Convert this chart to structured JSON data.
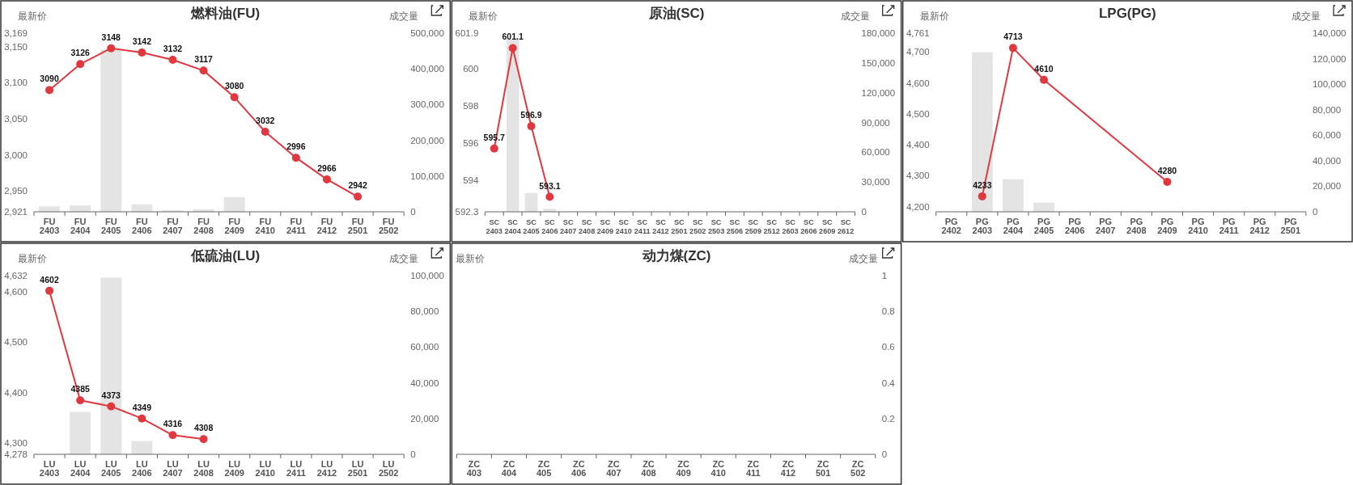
{
  "chart_data": [
    {
      "type": "bar",
      "title": "燃料油(FU)",
      "ylabel": "最新价",
      "y2label": "成交量",
      "categories": [
        "FU 2403",
        "FU 2404",
        "FU 2405",
        "FU 2406",
        "FU 2407",
        "FU 2408",
        "FU 2409",
        "FU 2410",
        "FU 2411",
        "FU 2412",
        "FU 2501",
        "FU 2502"
      ],
      "ylim": [
        2921,
        3169
      ],
      "yticks": [
        {
          "value": 2921,
          "label": "2,921"
        },
        {
          "value": 2950,
          "label": "2,950"
        },
        {
          "value": 3000,
          "label": "3,000"
        },
        {
          "value": 3050,
          "label": "3,050"
        },
        {
          "value": 3100,
          "label": "3,100"
        },
        {
          "value": 3150,
          "label": "3,150"
        },
        {
          "value": 3169,
          "label": "3,169"
        }
      ],
      "y2lim": [
        0,
        500000
      ],
      "y2ticks": [
        0,
        {
          "value": 100000,
          "label": "100,000"
        },
        {
          "value": 200000,
          "label": "200,000"
        },
        {
          "value": 300000,
          "label": "300,000"
        },
        {
          "value": 400000,
          "label": "400,000"
        },
        {
          "value": 500000,
          "label": "500,000"
        }
      ],
      "marker": "circle",
      "grid": false,
      "series": [
        {
          "axis": "y2",
          "color": "#e4e4e4",
          "values": [
            15000,
            18000,
            454000,
            21000,
            4000,
            7000,
            41000,
            null,
            null,
            null,
            null,
            null
          ]
        },
        {
          "type": "line",
          "color": "#e0383e",
          "values": [
            3090,
            3126,
            3148,
            3142,
            3132,
            3117,
            3080,
            3032,
            2996,
            2966,
            2942,
            null
          ],
          "value_labels": [
            "3090",
            "3126",
            "3148",
            "3142",
            "3132",
            "3117",
            "3080",
            "3032",
            "2996",
            "2966",
            "2942",
            null
          ]
        }
      ]
    },
    {
      "type": "bar",
      "title": "原油(SC)",
      "ylabel": "最新价",
      "y2label": "成交量",
      "categories": [
        "SC 2403",
        "SC 2404",
        "SC 2405",
        "SC 2406",
        "SC 2407",
        "SC 2408",
        "SC 2409",
        "SC 2410",
        "SC 2411",
        "SC 2412",
        "SC 2501",
        "SC 2502",
        "SC 2503",
        "SC 2506",
        "SC 2509",
        "SC 2512",
        "SC 2603",
        "SC 2606",
        "SC 2609",
        "SC 2612"
      ],
      "ylim": [
        592.3,
        601.9
      ],
      "yticks": [
        592.3,
        594,
        596,
        598,
        600,
        601.9
      ],
      "y2lim": [
        0,
        180000
      ],
      "y2ticks": [
        0,
        {
          "value": 30000,
          "label": "30,000"
        },
        {
          "value": 60000,
          "label": "60,000"
        },
        {
          "value": 90000,
          "label": "90,000"
        },
        {
          "value": 120000,
          "label": "120,000"
        },
        {
          "value": 150000,
          "label": "150,000"
        },
        {
          "value": 180000,
          "label": "180,000"
        }
      ],
      "marker": "circle",
      "grid": false,
      "series": [
        {
          "axis": "y2",
          "color": "#e4e4e4",
          "values": [
            null,
            174000,
            19000,
            3000,
            null,
            null,
            null,
            null,
            null,
            null,
            null,
            null,
            null,
            null,
            null,
            null,
            null,
            null,
            null,
            null
          ]
        },
        {
          "type": "line",
          "color": "#e0383e",
          "values": [
            595.7,
            601.1,
            596.9,
            593.1,
            null,
            null,
            null,
            null,
            null,
            null,
            null,
            null,
            null,
            null,
            null,
            null,
            null,
            null,
            null,
            null
          ],
          "value_labels": [
            "595.7",
            "601.1",
            "596.9",
            "593.1",
            null,
            null,
            null,
            null,
            null,
            null,
            null,
            null,
            null,
            null,
            null,
            null,
            null,
            null,
            null,
            null
          ]
        }
      ]
    },
    {
      "type": "bar",
      "title": "LPG(PG)",
      "ylabel": "最新价",
      "y2label": "成交量",
      "categories": [
        "PG 2402",
        "PG 2403",
        "PG 2404",
        "PG 2405",
        "PG 2406",
        "PG 2407",
        "PG 2408",
        "PG 2409",
        "PG 2410",
        "PG 2411",
        "PG 2412",
        "PG 2501"
      ],
      "ylim": [
        4183,
        4761
      ],
      "yticks": [
        {
          "value": 4200,
          "label": "4,200"
        },
        {
          "value": 4300,
          "label": "4,300"
        },
        {
          "value": 4400,
          "label": "4,400"
        },
        {
          "value": 4500,
          "label": "4,500"
        },
        {
          "value": 4600,
          "label": "4,600"
        },
        {
          "value": 4700,
          "label": "4,700"
        },
        {
          "value": 4761,
          "label": "4,761"
        }
      ],
      "y2lim": [
        0,
        140000
      ],
      "y2ticks": [
        0,
        {
          "value": 20000,
          "label": "20,000"
        },
        {
          "value": 40000,
          "label": "40,000"
        },
        {
          "value": 60000,
          "label": "60,000"
        },
        {
          "value": 80000,
          "label": "80,000"
        },
        {
          "value": 100000,
          "label": "100,000"
        },
        {
          "value": 120000,
          "label": "120,000"
        },
        {
          "value": 140000,
          "label": "140,000"
        }
      ],
      "marker": "circle",
      "grid": false,
      "series": [
        {
          "axis": "y2",
          "color": "#e4e4e4",
          "values": [
            null,
            125000,
            25500,
            7200,
            null,
            null,
            null,
            null,
            null,
            null,
            null,
            null
          ]
        },
        {
          "type": "line",
          "color": "#e0383e",
          "values": [
            null,
            4233,
            4713,
            4610,
            null,
            null,
            null,
            4280,
            null,
            null,
            null,
            null
          ],
          "value_labels": [
            null,
            "4233",
            "4713",
            "4610",
            null,
            null,
            null,
            "4280",
            null,
            null,
            null,
            null
          ]
        }
      ]
    },
    {
      "type": "bar",
      "title": "低硫油(LU)",
      "ylabel": "最新价",
      "y2label": "成交量",
      "categories": [
        "LU 2403",
        "LU 2404",
        "LU 2405",
        "LU 2406",
        "LU 2407",
        "LU 2408",
        "LU 2409",
        "LU 2410",
        "LU 2411",
        "LU 2412",
        "LU 2501",
        "LU 2502"
      ],
      "ylim": [
        4278,
        4632
      ],
      "yticks": [
        {
          "value": 4278,
          "label": "4,278"
        },
        {
          "value": 4300,
          "label": "4,300"
        },
        {
          "value": 4400,
          "label": "4,400"
        },
        {
          "value": 4500,
          "label": "4,500"
        },
        {
          "value": 4600,
          "label": "4,600"
        },
        {
          "value": 4632,
          "label": "4,632"
        }
      ],
      "y2lim": [
        0,
        100000
      ],
      "y2ticks": [
        0,
        {
          "value": 20000,
          "label": "20,000"
        },
        {
          "value": 40000,
          "label": "40,000"
        },
        {
          "value": 60000,
          "label": "60,000"
        },
        {
          "value": 80000,
          "label": "80,000"
        },
        {
          "value": 100000,
          "label": "100,000"
        }
      ],
      "marker": "circle",
      "grid": false,
      "series": [
        {
          "axis": "y2",
          "color": "#e4e4e4",
          "values": [
            null,
            23700,
            98900,
            7400,
            null,
            null,
            null,
            null,
            null,
            null,
            null,
            null
          ]
        },
        {
          "type": "line",
          "color": "#e0383e",
          "values": [
            4602,
            4385,
            4373,
            4349,
            4316,
            4308,
            null,
            null,
            null,
            null,
            null,
            null
          ],
          "value_labels": [
            "4602",
            "4385",
            "4373",
            "4349",
            "4316",
            "4308",
            null,
            null,
            null,
            null,
            null,
            null
          ]
        }
      ]
    },
    {
      "type": "bar",
      "title": "动力煤(ZC)",
      "ylabel": "最新价",
      "y2label": "成交量",
      "categories": [
        "ZC 403",
        "ZC 404",
        "ZC 405",
        "ZC 406",
        "ZC 407",
        "ZC 408",
        "ZC 409",
        "ZC 410",
        "ZC 411",
        "ZC 412",
        "ZC 501",
        "ZC 502"
      ],
      "y2lim": [
        0,
        1
      ],
      "y2ticks": [
        0,
        0.2,
        0.4,
        0.6,
        0.8,
        1
      ],
      "grid": false,
      "series": [
        {
          "axis": "y2",
          "color": "#e4e4e4",
          "values": [
            null,
            null,
            null,
            null,
            null,
            null,
            null,
            null,
            null,
            null,
            null,
            null
          ]
        }
      ]
    }
  ]
}
